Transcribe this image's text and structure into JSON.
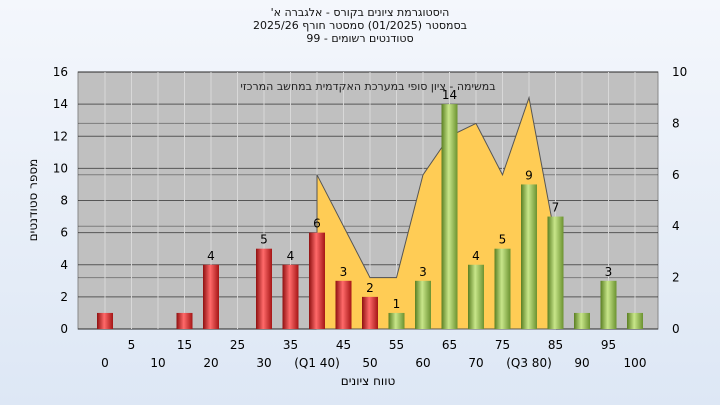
{
  "chart_data": {
    "type": "bar",
    "title": [
      "היסטוגרמת ציונים בקורס - אלגברה א'",
      "בסמסטר  (01/2025)  סמסטר חורף 2025/26",
      "סטודנטים רשומים - 99"
    ],
    "annotation": "במשימה - ציון סופי במערכת האקדמית במחשב המרכזי",
    "ylabel": "מספר סטודנטים",
    "xlabel": "טווח ציונים",
    "ylim": [
      0,
      16
    ],
    "yticks": [
      0,
      2,
      4,
      6,
      8,
      10,
      12,
      14,
      16
    ],
    "y2lim": [
      0,
      10
    ],
    "y2ticks": [
      0,
      2,
      4,
      6,
      8,
      10
    ],
    "x_top_labels": [
      "5",
      "15",
      "25",
      "35",
      "45",
      "55",
      "65",
      "75",
      "85",
      "95"
    ],
    "x_bottom_labels": [
      "0",
      "10",
      "20",
      "30",
      "(Q1 40)",
      "50",
      "60",
      "70",
      "(Q3 80)",
      "90",
      "100"
    ],
    "bins": [
      0,
      5,
      10,
      15,
      20,
      25,
      30,
      35,
      40,
      45,
      50,
      55,
      60,
      65,
      70,
      75,
      80,
      85,
      90,
      95,
      100
    ],
    "values": [
      1,
      0,
      0,
      1,
      4,
      0,
      5,
      4,
      6,
      3,
      2,
      1,
      3,
      14,
      4,
      5,
      9,
      7,
      1,
      3,
      1
    ],
    "data_labels": [
      "",
      "",
      "",
      "",
      "4",
      "",
      "5",
      "4",
      "6",
      "3",
      "2",
      "1",
      "3",
      "14",
      "4",
      "5",
      "9",
      "7",
      "",
      "3",
      ""
    ],
    "bar_colors": [
      "red",
      "red",
      "red",
      "red",
      "red",
      "red",
      "red",
      "red",
      "red",
      "red",
      "red",
      "green",
      "green",
      "green",
      "green",
      "green",
      "green",
      "green",
      "green",
      "green",
      "green"
    ],
    "area_series": {
      "x": [
        40,
        50,
        55,
        60,
        65,
        70,
        75,
        80,
        85
      ],
      "y2": [
        6,
        2,
        2,
        6,
        7.5,
        8,
        6,
        9,
        3.5
      ]
    },
    "grid": true,
    "colors": {
      "red": "#d42a2a",
      "green": "#8fb84a",
      "area": "#ffcc55",
      "plot_bg": "#c0c0c0"
    }
  }
}
